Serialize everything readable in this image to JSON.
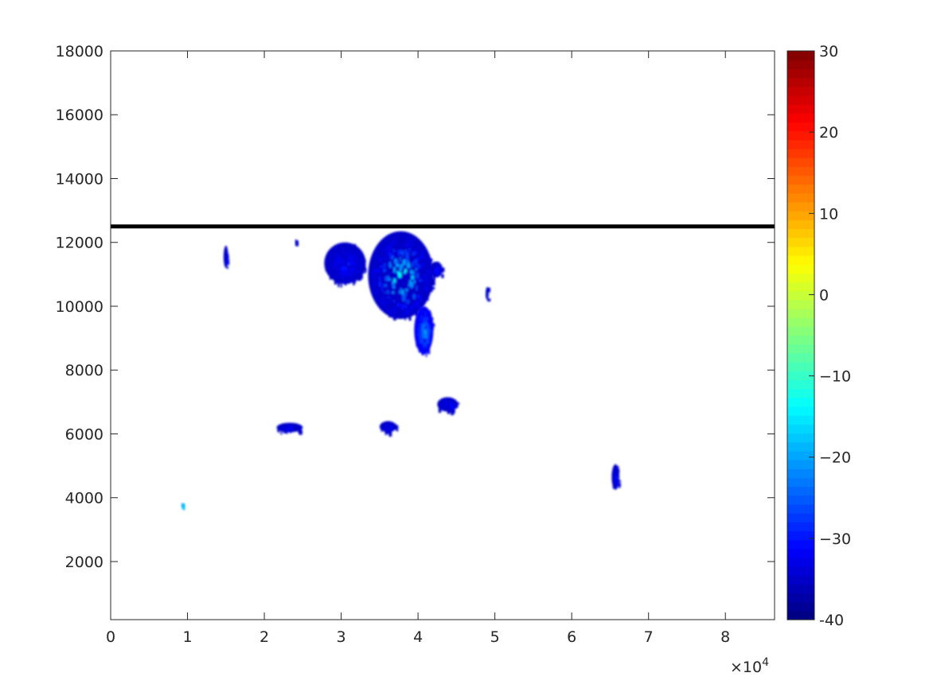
{
  "chart_data": {
    "type": "heatmap",
    "title": "",
    "xlabel": "",
    "ylabel": "",
    "x_exponent_label": "×10",
    "x_exponent_power": "4",
    "xlim": [
      0,
      86400
    ],
    "ylim": [
      180,
      18000
    ],
    "x_tick_values": [
      0,
      10000,
      20000,
      30000,
      40000,
      50000,
      60000,
      70000,
      80000
    ],
    "x_tick_labels": [
      "0",
      "1",
      "2",
      "3",
      "4",
      "5",
      "6",
      "7",
      "8"
    ],
    "y_tick_values": [
      2000,
      4000,
      6000,
      8000,
      10000,
      12000,
      14000,
      16000,
      18000
    ],
    "y_tick_labels": [
      "2000",
      "4000",
      "6000",
      "8000",
      "10000",
      "12000",
      "14000",
      "16000",
      "18000"
    ],
    "colorbar": {
      "colormap": "jet",
      "range": [
        -40,
        30
      ],
      "tick_values": [
        -40,
        -30,
        -20,
        -10,
        0,
        10,
        20,
        30
      ],
      "tick_labels": [
        "-40",
        "−30",
        "−20",
        "−10",
        "0",
        "10",
        "20",
        "30"
      ]
    },
    "reference_line": {
      "y": 12500,
      "color": "#000000"
    },
    "grid": false,
    "echo_regions": [
      {
        "x": [
          33500,
          42000
        ],
        "y": [
          9600,
          12350
        ],
        "value_min": -35,
        "value_max": -5,
        "note": "main cell"
      },
      {
        "x": [
          39500,
          42000
        ],
        "y": [
          8500,
          10000
        ],
        "value_min": -32,
        "value_max": -18,
        "note": "main cell lower extension"
      },
      {
        "x": [
          27800,
          33200
        ],
        "y": [
          10700,
          12000
        ],
        "value_min": -35,
        "value_max": -28,
        "note": ""
      },
      {
        "x": [
          41500,
          43200
        ],
        "y": [
          10900,
          11400
        ],
        "value_min": -35,
        "value_max": -28,
        "note": ""
      },
      {
        "x": [
          14700,
          15300
        ],
        "y": [
          11200,
          11900
        ],
        "value_min": -35,
        "value_max": -28,
        "note": ""
      },
      {
        "x": [
          24000,
          24200
        ],
        "y": [
          11950,
          12100
        ],
        "value_min": -35,
        "value_max": -30,
        "note": ""
      },
      {
        "x": [
          48800,
          49200
        ],
        "y": [
          10200,
          10600
        ],
        "value_min": -35,
        "value_max": -28,
        "note": ""
      },
      {
        "x": [
          21600,
          25000
        ],
        "y": [
          6050,
          6350
        ],
        "value_min": -35,
        "value_max": -28,
        "note": ""
      },
      {
        "x": [
          35000,
          37200
        ],
        "y": [
          6050,
          6400
        ],
        "value_min": -35,
        "value_max": -28,
        "note": ""
      },
      {
        "x": [
          42500,
          45200
        ],
        "y": [
          6700,
          7150
        ],
        "value_min": -35,
        "value_max": -28,
        "note": ""
      },
      {
        "x": [
          65200,
          66200
        ],
        "y": [
          4250,
          5050
        ],
        "value_min": -35,
        "value_max": -28,
        "note": ""
      },
      {
        "x": [
          9200,
          9400
        ],
        "y": [
          3780,
          3830
        ],
        "value_min": -20,
        "value_max": -15,
        "note": ""
      }
    ]
  }
}
